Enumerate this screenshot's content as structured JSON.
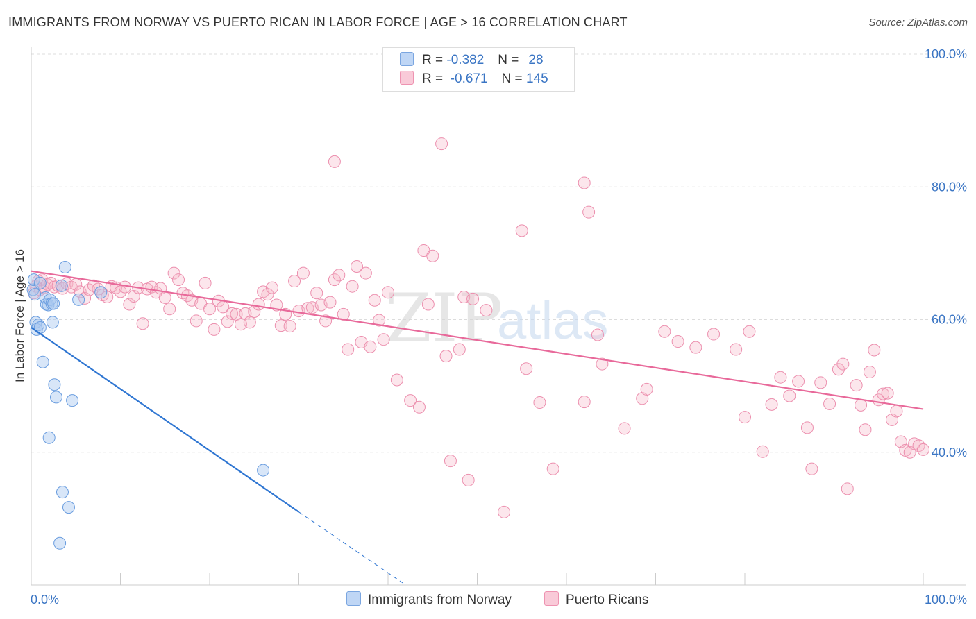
{
  "title": "IMMIGRANTS FROM NORWAY VS PUERTO RICAN IN LABOR FORCE | AGE > 16 CORRELATION CHART",
  "source": "Source: ZipAtlas.com",
  "watermark": {
    "zip": "ZIP",
    "atlas": "atlas"
  },
  "legend": {
    "norway": {
      "r_label": "R =",
      "r_value": "-0.382",
      "n_label": "N =",
      "n_value": "28"
    },
    "puerto": {
      "r_label": "R =",
      "r_value": "-0.671",
      "n_label": "N =",
      "n_value": "145"
    }
  },
  "colors": {
    "norway": "#a9c8f0",
    "norway_line": "#2f76d2",
    "puerto": "#f5b7c9",
    "puerto_line": "#e8699a",
    "tick_text": "#3a75c4"
  },
  "chart_data": {
    "type": "scatter",
    "title": "IMMIGRANTS FROM NORWAY VS PUERTO RICAN IN LABOR FORCE | AGE > 16 CORRELATION CHART",
    "xlabel": "",
    "ylabel": "In Labor Force | Age > 16",
    "xlim": [
      0,
      100
    ],
    "ylim": [
      20,
      100
    ],
    "x_ticks": [
      "0.0%",
      "100.0%"
    ],
    "y_ticks": [
      {
        "value": 40,
        "label": "40.0%"
      },
      {
        "value": 60,
        "label": "60.0%"
      },
      {
        "value": 80,
        "label": "80.0%"
      },
      {
        "value": 100,
        "label": "100.0%"
      }
    ],
    "grid": true,
    "legend_position": "top-center",
    "series": [
      {
        "name": "Immigrants from Norway",
        "r": -0.382,
        "n": 28,
        "trend": {
          "x0": 0,
          "y0": 58.8,
          "x1": 30,
          "y1": 31.0,
          "dashed_to_x": 42,
          "dashed_to_y": 20
        },
        "points": [
          [
            0.2,
            64.5
          ],
          [
            0.3,
            66.0
          ],
          [
            0.4,
            63.8
          ],
          [
            0.5,
            59.6
          ],
          [
            0.6,
            58.5
          ],
          [
            0.8,
            59.2
          ],
          [
            1.0,
            58.8
          ],
          [
            1.3,
            53.6
          ],
          [
            1.6,
            63.3
          ],
          [
            1.7,
            62.3
          ],
          [
            1.9,
            62.2
          ],
          [
            2.1,
            63.0
          ],
          [
            2.3,
            62.4
          ],
          [
            2.4,
            59.6
          ],
          [
            2.6,
            50.2
          ],
          [
            2.8,
            48.3
          ],
          [
            2.0,
            42.2
          ],
          [
            3.4,
            65.1
          ],
          [
            3.8,
            67.9
          ],
          [
            4.6,
            47.8
          ],
          [
            5.3,
            63.0
          ],
          [
            7.8,
            64.1
          ],
          [
            3.5,
            34.0
          ],
          [
            4.2,
            31.7
          ],
          [
            3.2,
            26.3
          ],
          [
            26.0,
            37.3
          ],
          [
            1.0,
            65.5
          ],
          [
            2.5,
            62.4
          ]
        ]
      },
      {
        "name": "Puerto Ricans",
        "r": -0.671,
        "n": 145,
        "trend": {
          "x0": 0,
          "y0": 67.3,
          "x1": 100,
          "y1": 46.5
        },
        "points": [
          [
            0.3,
            64.0
          ],
          [
            0.5,
            65.0
          ],
          [
            0.8,
            65.8
          ],
          [
            1.0,
            64.5
          ],
          [
            1.2,
            66.0
          ],
          [
            1.5,
            64.8
          ],
          [
            1.8,
            65.3
          ],
          [
            2.2,
            65.5
          ],
          [
            2.6,
            64.9
          ],
          [
            3.0,
            65.1
          ],
          [
            3.5,
            64.7
          ],
          [
            4.0,
            65.4
          ],
          [
            4.5,
            64.9
          ],
          [
            5.0,
            65.3
          ],
          [
            5.5,
            64.2
          ],
          [
            6.0,
            63.2
          ],
          [
            6.5,
            64.5
          ],
          [
            7.0,
            65.1
          ],
          [
            7.5,
            64.6
          ],
          [
            8.0,
            63.7
          ],
          [
            8.5,
            63.4
          ],
          [
            9.0,
            65.0
          ],
          [
            9.5,
            64.8
          ],
          [
            10.0,
            64.2
          ],
          [
            10.5,
            64.9
          ],
          [
            11.0,
            62.3
          ],
          [
            11.5,
            63.5
          ],
          [
            12.0,
            64.8
          ],
          [
            12.5,
            59.4
          ],
          [
            13.0,
            64.6
          ],
          [
            13.5,
            64.9
          ],
          [
            14.0,
            64.1
          ],
          [
            14.5,
            64.7
          ],
          [
            15.0,
            63.3
          ],
          [
            15.5,
            61.6
          ],
          [
            16.0,
            67.0
          ],
          [
            16.5,
            66.0
          ],
          [
            17.0,
            64.0
          ],
          [
            17.5,
            63.6
          ],
          [
            18.0,
            62.9
          ],
          [
            18.5,
            59.8
          ],
          [
            19.0,
            62.4
          ],
          [
            19.5,
            65.5
          ],
          [
            20.0,
            61.6
          ],
          [
            20.5,
            58.5
          ],
          [
            21.0,
            62.8
          ],
          [
            21.5,
            61.9
          ],
          [
            22.0,
            59.7
          ],
          [
            22.5,
            60.9
          ],
          [
            23.0,
            60.8
          ],
          [
            23.5,
            59.3
          ],
          [
            24.0,
            60.9
          ],
          [
            24.5,
            59.6
          ],
          [
            25.0,
            61.2
          ],
          [
            25.5,
            62.3
          ],
          [
            26.0,
            64.2
          ],
          [
            26.5,
            63.8
          ],
          [
            27.0,
            64.8
          ],
          [
            27.5,
            62.2
          ],
          [
            28.0,
            59.1
          ],
          [
            28.5,
            60.8
          ],
          [
            29.0,
            59.0
          ],
          [
            29.5,
            65.8
          ],
          [
            30.0,
            61.3
          ],
          [
            30.5,
            67.0
          ],
          [
            31.0,
            61.7
          ],
          [
            31.5,
            61.8
          ],
          [
            32.0,
            64.0
          ],
          [
            32.5,
            62.2
          ],
          [
            33.0,
            59.8
          ],
          [
            33.5,
            62.6
          ],
          [
            34.0,
            66.0
          ],
          [
            34.5,
            66.7
          ],
          [
            35.0,
            60.8
          ],
          [
            35.5,
            55.5
          ],
          [
            36.0,
            65.0
          ],
          [
            36.5,
            68.0
          ],
          [
            37.0,
            56.6
          ],
          [
            37.5,
            67.0
          ],
          [
            38.0,
            55.9
          ],
          [
            38.5,
            62.9
          ],
          [
            39.0,
            59.9
          ],
          [
            39.5,
            57.0
          ],
          [
            40.0,
            64.1
          ],
          [
            41.0,
            50.9
          ],
          [
            42.5,
            47.8
          ],
          [
            43.5,
            46.8
          ],
          [
            44.0,
            70.4
          ],
          [
            45.0,
            69.6
          ],
          [
            46.5,
            54.5
          ],
          [
            47.0,
            38.7
          ],
          [
            48.0,
            55.5
          ],
          [
            48.5,
            63.4
          ],
          [
            49.0,
            35.8
          ],
          [
            49.5,
            63.1
          ],
          [
            51.0,
            61.4
          ],
          [
            53.0,
            31.0
          ],
          [
            55.0,
            73.4
          ],
          [
            55.5,
            52.6
          ],
          [
            58.5,
            37.5
          ],
          [
            62.5,
            76.2
          ],
          [
            62.0,
            47.6
          ],
          [
            63.5,
            57.7
          ],
          [
            64.0,
            53.3
          ],
          [
            66.5,
            43.6
          ],
          [
            68.5,
            48.1
          ],
          [
            69.0,
            49.5
          ],
          [
            71.0,
            58.2
          ],
          [
            72.5,
            56.7
          ],
          [
            74.5,
            55.8
          ],
          [
            76.5,
            57.8
          ],
          [
            79.0,
            55.5
          ],
          [
            80.0,
            45.3
          ],
          [
            80.5,
            58.2
          ],
          [
            82.0,
            40.1
          ],
          [
            83.0,
            47.2
          ],
          [
            84.0,
            51.3
          ],
          [
            85.0,
            48.5
          ],
          [
            86.0,
            50.7
          ],
          [
            87.0,
            43.7
          ],
          [
            87.5,
            37.5
          ],
          [
            88.5,
            50.5
          ],
          [
            89.5,
            47.3
          ],
          [
            90.5,
            52.5
          ],
          [
            91.0,
            53.3
          ],
          [
            91.5,
            34.5
          ],
          [
            92.5,
            50.1
          ],
          [
            93.0,
            47.1
          ],
          [
            93.5,
            43.4
          ],
          [
            94.0,
            52.1
          ],
          [
            94.5,
            55.4
          ],
          [
            95.0,
            47.9
          ],
          [
            95.5,
            48.8
          ],
          [
            96.0,
            48.9
          ],
          [
            96.5,
            44.9
          ],
          [
            97.0,
            46.2
          ],
          [
            97.5,
            41.6
          ],
          [
            98.0,
            40.3
          ],
          [
            98.5,
            40.0
          ],
          [
            99.0,
            41.3
          ],
          [
            99.5,
            41.0
          ],
          [
            100.0,
            40.4
          ],
          [
            46.0,
            86.5
          ],
          [
            34.0,
            83.8
          ],
          [
            62.0,
            80.6
          ],
          [
            57.0,
            47.5
          ],
          [
            44.5,
            62.3
          ]
        ]
      }
    ]
  },
  "bottom_legend": {
    "norway_label": "Immigrants from Norway",
    "puerto_label": "Puerto Ricans"
  }
}
